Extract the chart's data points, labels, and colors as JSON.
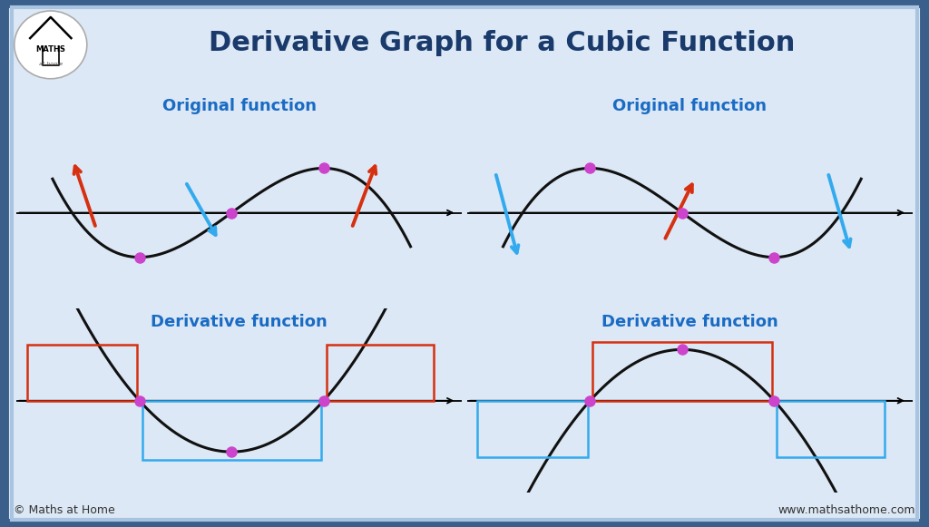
{
  "title": "Derivative Graph for a Cubic Function",
  "title_color": "#1a3a6b",
  "title_fontsize": 22,
  "bg_color": "#dce8f5",
  "border_outer_color": "#3a5f8a",
  "border_inner_color": "#a8c4e0",
  "panel_bg": "#ffffff",
  "label_color": "#1a6bc4",
  "curve_color": "#111111",
  "dot_color": "#cc44cc",
  "arrow_red": "#d63010",
  "arrow_blue": "#33aaee",
  "rect_red": "#d63010",
  "rect_blue": "#33aaee",
  "footer_left": "© Maths at Home",
  "footer_right": "www.mathsathome.com",
  "footer_fontsize": 9,
  "footer_color": "#333333"
}
